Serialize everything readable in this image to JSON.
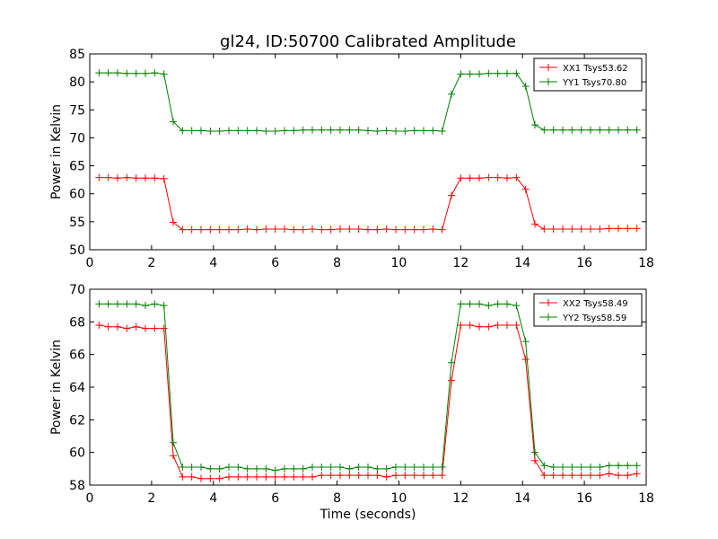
{
  "figure": {
    "title": "gl24, ID:50700 Calibrated Amplitude"
  },
  "chart_data": [
    {
      "type": "line",
      "title": "gl24, ID:50700 Calibrated Amplitude",
      "xlabel": "",
      "ylabel": "Power in Kelvin",
      "xlim": [
        0,
        18
      ],
      "ylim": [
        50,
        85
      ],
      "xticks": [
        0,
        2,
        4,
        6,
        8,
        10,
        12,
        14,
        16,
        18
      ],
      "yticks": [
        50,
        55,
        60,
        65,
        70,
        75,
        80,
        85
      ],
      "legend_position": "top-right",
      "x": [
        0.3,
        0.6,
        0.9,
        1.2,
        1.5,
        1.8,
        2.1,
        2.4,
        2.7,
        3.0,
        3.3,
        3.6,
        3.9,
        4.2,
        4.5,
        4.8,
        5.1,
        5.4,
        5.7,
        6.0,
        6.3,
        6.6,
        6.9,
        7.2,
        7.5,
        7.8,
        8.1,
        8.4,
        8.7,
        9.0,
        9.3,
        9.6,
        9.9,
        10.2,
        10.5,
        10.8,
        11.1,
        11.4,
        11.7,
        12.0,
        12.3,
        12.6,
        12.9,
        13.2,
        13.5,
        13.8,
        14.1,
        14.4,
        14.7,
        15.0,
        15.3,
        15.6,
        15.9,
        16.2,
        16.5,
        16.8,
        17.1,
        17.4,
        17.7
      ],
      "series": [
        {
          "name": "XX1 Tsys53.62",
          "color": "#ff0000",
          "values": [
            62.9,
            62.9,
            62.8,
            62.9,
            62.8,
            62.8,
            62.8,
            62.7,
            54.9,
            53.6,
            53.6,
            53.6,
            53.6,
            53.6,
            53.6,
            53.6,
            53.7,
            53.6,
            53.7,
            53.7,
            53.7,
            53.6,
            53.6,
            53.7,
            53.6,
            53.6,
            53.7,
            53.7,
            53.7,
            53.6,
            53.6,
            53.7,
            53.6,
            53.6,
            53.6,
            53.6,
            53.7,
            53.6,
            59.7,
            62.8,
            62.8,
            62.8,
            62.9,
            62.9,
            62.8,
            62.9,
            60.8,
            54.6,
            53.7,
            53.7,
            53.7,
            53.7,
            53.7,
            53.7,
            53.7,
            53.8,
            53.8,
            53.8,
            53.8
          ]
        },
        {
          "name": "YY1 Tsys70.80",
          "color": "#008000",
          "values": [
            81.6,
            81.6,
            81.6,
            81.5,
            81.5,
            81.5,
            81.6,
            81.4,
            72.9,
            71.3,
            71.3,
            71.3,
            71.2,
            71.2,
            71.3,
            71.3,
            71.3,
            71.3,
            71.2,
            71.2,
            71.3,
            71.3,
            71.4,
            71.4,
            71.4,
            71.4,
            71.4,
            71.4,
            71.4,
            71.3,
            71.2,
            71.3,
            71.2,
            71.2,
            71.3,
            71.3,
            71.3,
            71.2,
            77.8,
            81.4,
            81.4,
            81.4,
            81.5,
            81.5,
            81.5,
            81.5,
            79.2,
            72.3,
            71.4,
            71.4,
            71.4,
            71.4,
            71.4,
            71.4,
            71.4,
            71.4,
            71.4,
            71.4,
            71.4
          ]
        }
      ]
    },
    {
      "type": "line",
      "title": "",
      "xlabel": "Time (seconds)",
      "ylabel": "Power in Kelvin",
      "xlim": [
        0,
        18
      ],
      "ylim": [
        58,
        70
      ],
      "xticks": [
        0,
        2,
        4,
        6,
        8,
        10,
        12,
        14,
        16,
        18
      ],
      "yticks": [
        58,
        60,
        62,
        64,
        66,
        68,
        70
      ],
      "legend_position": "top-right",
      "x": [
        0.3,
        0.6,
        0.9,
        1.2,
        1.5,
        1.8,
        2.1,
        2.4,
        2.7,
        3.0,
        3.3,
        3.6,
        3.9,
        4.2,
        4.5,
        4.8,
        5.1,
        5.4,
        5.7,
        6.0,
        6.3,
        6.6,
        6.9,
        7.2,
        7.5,
        7.8,
        8.1,
        8.4,
        8.7,
        9.0,
        9.3,
        9.6,
        9.9,
        10.2,
        10.5,
        10.8,
        11.1,
        11.4,
        11.7,
        12.0,
        12.3,
        12.6,
        12.9,
        13.2,
        13.5,
        13.8,
        14.1,
        14.4,
        14.7,
        15.0,
        15.3,
        15.6,
        15.9,
        16.2,
        16.5,
        16.8,
        17.1,
        17.4,
        17.7
      ],
      "series": [
        {
          "name": "XX2 Tsys58.49",
          "color": "#ff0000",
          "values": [
            67.8,
            67.7,
            67.7,
            67.6,
            67.7,
            67.6,
            67.6,
            67.6,
            59.8,
            58.5,
            58.5,
            58.4,
            58.4,
            58.4,
            58.5,
            58.5,
            58.5,
            58.5,
            58.5,
            58.5,
            58.5,
            58.5,
            58.5,
            58.5,
            58.6,
            58.6,
            58.6,
            58.6,
            58.6,
            58.6,
            58.6,
            58.5,
            58.6,
            58.6,
            58.6,
            58.6,
            58.6,
            58.6,
            64.4,
            67.8,
            67.8,
            67.7,
            67.7,
            67.8,
            67.8,
            67.8,
            65.7,
            59.5,
            58.6,
            58.6,
            58.6,
            58.6,
            58.6,
            58.6,
            58.6,
            58.7,
            58.6,
            58.6,
            58.7
          ]
        },
        {
          "name": "YY2 Tsys58.59",
          "color": "#008000",
          "values": [
            69.1,
            69.1,
            69.1,
            69.1,
            69.1,
            69.0,
            69.1,
            69.0,
            60.6,
            59.1,
            59.1,
            59.1,
            59.0,
            59.0,
            59.1,
            59.1,
            59.0,
            59.0,
            59.0,
            58.9,
            59.0,
            59.0,
            59.0,
            59.1,
            59.1,
            59.1,
            59.1,
            59.0,
            59.1,
            59.1,
            59.0,
            59.0,
            59.1,
            59.1,
            59.1,
            59.1,
            59.1,
            59.1,
            65.5,
            69.1,
            69.1,
            69.1,
            69.0,
            69.1,
            69.1,
            69.0,
            66.8,
            60.0,
            59.2,
            59.1,
            59.1,
            59.1,
            59.1,
            59.1,
            59.1,
            59.2,
            59.2,
            59.2,
            59.2
          ]
        }
      ]
    }
  ]
}
